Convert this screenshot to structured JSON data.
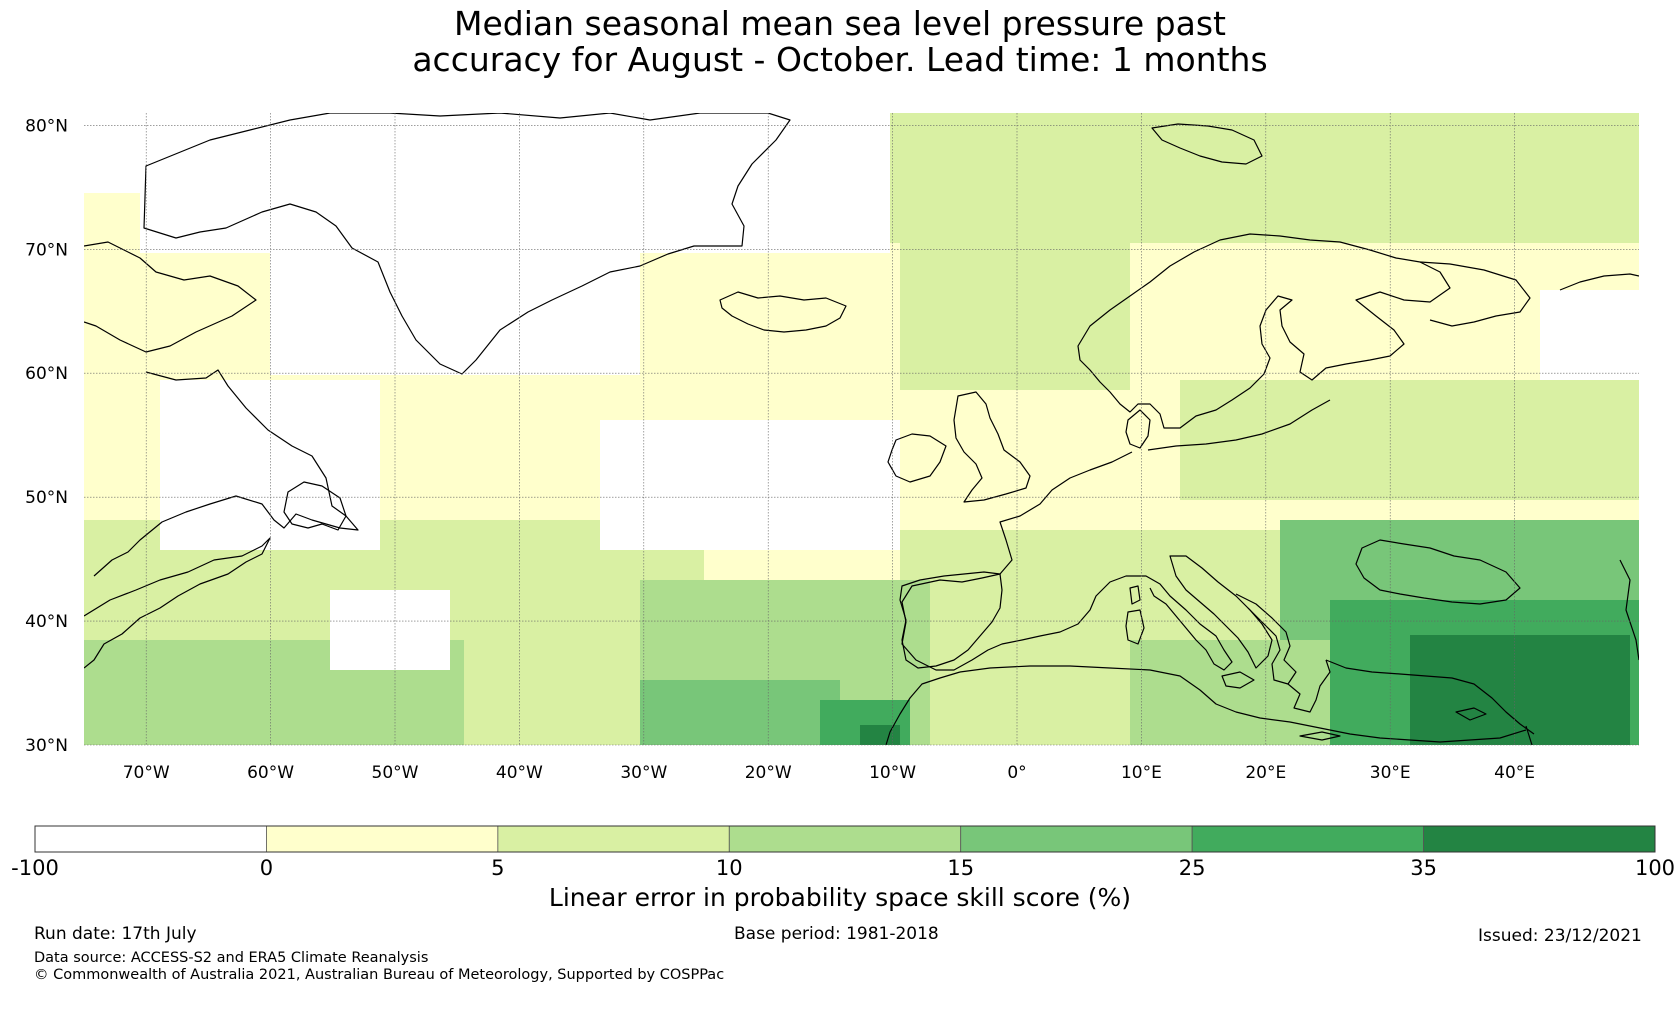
{
  "title": {
    "line1": "Median seasonal mean sea level pressure past",
    "line2": "accuracy for August - October. Lead time: 1 months"
  },
  "map": {
    "extent": {
      "lon_min": -75,
      "lon_max": 50,
      "lat_min": 30,
      "lat_max": 81
    },
    "lat_ticks": [
      {
        "value": 80,
        "label": "80°N"
      },
      {
        "value": 70,
        "label": "70°N"
      },
      {
        "value": 60,
        "label": "60°N"
      },
      {
        "value": 50,
        "label": "50°N"
      },
      {
        "value": 40,
        "label": "40°N"
      },
      {
        "value": 30,
        "label": "30°N"
      }
    ],
    "lon_ticks": [
      {
        "value": -70,
        "label": "70°W"
      },
      {
        "value": -60,
        "label": "60°W"
      },
      {
        "value": -50,
        "label": "50°W"
      },
      {
        "value": -40,
        "label": "40°W"
      },
      {
        "value": -30,
        "label": "30°W"
      },
      {
        "value": -20,
        "label": "20°W"
      },
      {
        "value": -10,
        "label": "10°W"
      },
      {
        "value": 0,
        "label": "0°"
      },
      {
        "value": 10,
        "label": "10°E"
      },
      {
        "value": 20,
        "label": "20°E"
      },
      {
        "value": 30,
        "label": "30°E"
      },
      {
        "value": 40,
        "label": "40°E"
      }
    ],
    "gridlines": true,
    "field": "LEPS skill score, gridded; values shown by colour band"
  },
  "colorbar": {
    "boundaries": [
      "-100",
      "0",
      "5",
      "10",
      "15",
      "25",
      "35",
      "100"
    ],
    "colors": [
      "#ffffff",
      "#ffffcc",
      "#d9f0a3",
      "#addd8e",
      "#78c679",
      "#41ab5d",
      "#238443"
    ],
    "label": "Linear error in probability space skill score (%)"
  },
  "footer": {
    "run_date": "Run date: 17th July",
    "base_period": "Base period: 1981-2018",
    "issued": "Issued: 23/12/2021",
    "data_source": "Data source: ACCESS-S2 and ERA5 Climate Reanalysis",
    "copyright": "© Commonwealth of Australia 2021, Australian Bureau of Meteorology, Supported by COSPPac"
  }
}
